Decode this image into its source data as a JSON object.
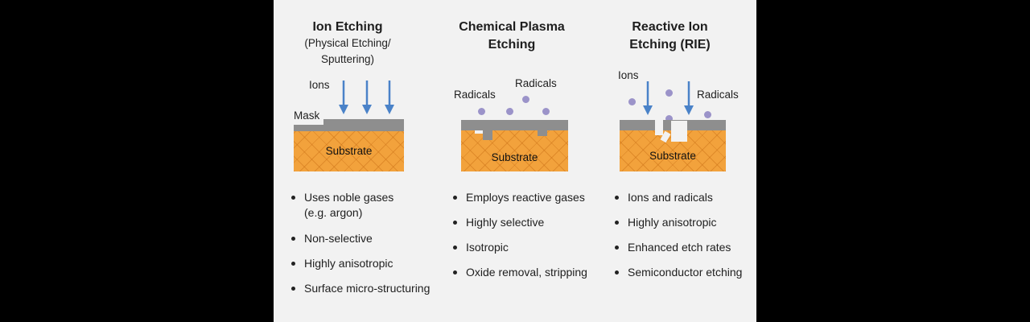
{
  "columns": [
    {
      "title": "Ion Etching",
      "subtitle": [
        "(Physical Etching/",
        "Sputtering)"
      ],
      "labels": {
        "ions": "Ions",
        "mask": "Mask",
        "substrate": "Substrate"
      },
      "bullets": [
        "Uses noble gases",
        "(e.g. argon)",
        "Non-selective",
        "Highly anisotropic",
        "Surface micro-structuring"
      ]
    },
    {
      "title": [
        "Chemical Plasma",
        "Etching"
      ],
      "labels": {
        "radicals_left": "Radicals",
        "radicals_right": "Radicals",
        "substrate": "Substrate"
      },
      "bullets": [
        "Employs reactive gases",
        "Highly selective",
        "Isotropic",
        "Oxide removal, stripping"
      ]
    },
    {
      "title": [
        "Reactive Ion",
        "Etching (RIE)"
      ],
      "labels": {
        "ions": "Ions",
        "radicals": "Radicals",
        "substrate": "Substrate"
      },
      "bullets": [
        "Ions and radicals",
        "Highly anisotropic",
        "Enhanced etch rates",
        "Semiconductor etching"
      ]
    }
  ],
  "colors": {
    "background": "#f2f2f2",
    "outer": "#000000",
    "substrate": "#f2a23c",
    "mask": "#8e8e8e",
    "arrow": "#4a82c8",
    "radical": "#9b93c9"
  },
  "icons": {
    "arrow": "down-arrow-icon",
    "radical": "radical-dot-icon"
  }
}
